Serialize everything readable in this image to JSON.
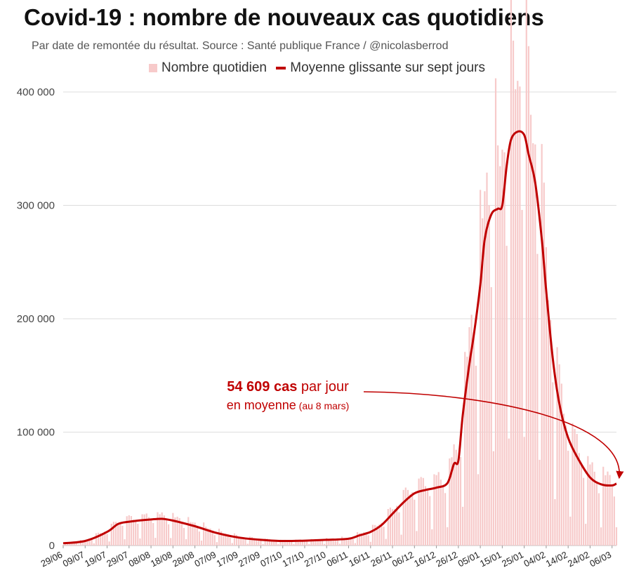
{
  "title": "Covid-19 : nombre de nouveaux cas quotidiens",
  "subtitle": "Par date de remontée du résultat. Source : Santé publique France / @nicolasberrod",
  "legend": {
    "bars_label": "Nombre quotidien",
    "line_label": "Moyenne glissante sur sept jours"
  },
  "annotation": {
    "value_text": "54 609 cas",
    "line1_rest": " par jour",
    "line2": "en moyenne",
    "line2_small": " (au 8 mars)"
  },
  "colors": {
    "bars": "#f7caca",
    "line": "#c00000",
    "grid": "#dddddd",
    "annotation": "#c00000"
  },
  "chart_data": {
    "type": "bar",
    "xlabel": "",
    "ylabel": "",
    "ylim": [
      0,
      400000
    ],
    "yticks": [
      0,
      100000,
      200000,
      300000,
      400000
    ],
    "ytick_labels": [
      "0",
      "100 000",
      "200 000",
      "300 000",
      "400 000"
    ],
    "x_start": "2021-06-29",
    "x_end": "2022-03-08",
    "xtick_dates": [
      "2021-06-29",
      "2021-07-09",
      "2021-07-19",
      "2021-07-29",
      "2021-08-08",
      "2021-08-18",
      "2021-08-28",
      "2021-09-07",
      "2021-09-17",
      "2021-09-27",
      "2021-10-07",
      "2021-10-17",
      "2021-10-27",
      "2021-11-06",
      "2021-11-16",
      "2021-11-26",
      "2021-12-06",
      "2021-12-16",
      "2021-12-26",
      "2022-01-05",
      "2022-01-15",
      "2022-01-25",
      "2022-02-04",
      "2022-02-14",
      "2022-02-24",
      "2022-03-06"
    ],
    "xtick_labels": [
      "29/06",
      "09/07",
      "19/07",
      "29/07",
      "08/08",
      "18/08",
      "28/08",
      "07/09",
      "17/09",
      "27/09",
      "07/10",
      "17/10",
      "27/10",
      "06/11",
      "16/11",
      "26/11",
      "06/12",
      "16/12",
      "26/12",
      "05/01",
      "15/01",
      "25/01",
      "04/02",
      "14/02",
      "24/02",
      "06/03"
    ],
    "grid": true,
    "legend_position": "top",
    "series": [
      {
        "name": "Moyenne glissante sur sept jours",
        "type": "line",
        "points": [
          [
            "2021-06-29",
            2000
          ],
          [
            "2021-07-09",
            4000
          ],
          [
            "2021-07-19",
            12000
          ],
          [
            "2021-07-24",
            19000
          ],
          [
            "2021-07-29",
            21000
          ],
          [
            "2021-08-08",
            23000
          ],
          [
            "2021-08-13",
            23500
          ],
          [
            "2021-08-18",
            22000
          ],
          [
            "2021-08-28",
            17000
          ],
          [
            "2021-09-07",
            11000
          ],
          [
            "2021-09-17",
            7000
          ],
          [
            "2021-09-27",
            5000
          ],
          [
            "2021-10-07",
            4000
          ],
          [
            "2021-10-17",
            4300
          ],
          [
            "2021-10-27",
            5000
          ],
          [
            "2021-11-06",
            6000
          ],
          [
            "2021-11-11",
            9000
          ],
          [
            "2021-11-16",
            12000
          ],
          [
            "2021-11-21",
            18000
          ],
          [
            "2021-11-26",
            28000
          ],
          [
            "2021-12-01",
            38000
          ],
          [
            "2021-12-06",
            46000
          ],
          [
            "2021-12-11",
            49000
          ],
          [
            "2021-12-16",
            51000
          ],
          [
            "2021-12-21",
            55000
          ],
          [
            "2021-12-24",
            72000
          ],
          [
            "2021-12-26",
            75000
          ],
          [
            "2021-12-28",
            115000
          ],
          [
            "2021-12-31",
            160000
          ],
          [
            "2022-01-02",
            185000
          ],
          [
            "2022-01-05",
            230000
          ],
          [
            "2022-01-07",
            270000
          ],
          [
            "2022-01-10",
            292000
          ],
          [
            "2022-01-13",
            297000
          ],
          [
            "2022-01-15",
            300000
          ],
          [
            "2022-01-17",
            335000
          ],
          [
            "2022-01-19",
            358000
          ],
          [
            "2022-01-22",
            365000
          ],
          [
            "2022-01-25",
            362000
          ],
          [
            "2022-01-27",
            345000
          ],
          [
            "2022-01-30",
            320000
          ],
          [
            "2022-02-02",
            270000
          ],
          [
            "2022-02-04",
            225000
          ],
          [
            "2022-02-07",
            165000
          ],
          [
            "2022-02-10",
            125000
          ],
          [
            "2022-02-14",
            95000
          ],
          [
            "2022-02-19",
            75000
          ],
          [
            "2022-02-24",
            60000
          ],
          [
            "2022-03-01",
            54000
          ],
          [
            "2022-03-06",
            53000
          ],
          [
            "2022-03-08",
            54609
          ]
        ]
      }
    ],
    "bars_series_name": "Nombre quotidien",
    "bars_approx_daily_peak": 470000,
    "annotation_value": 54609,
    "annotation_date": "2022-03-08"
  }
}
